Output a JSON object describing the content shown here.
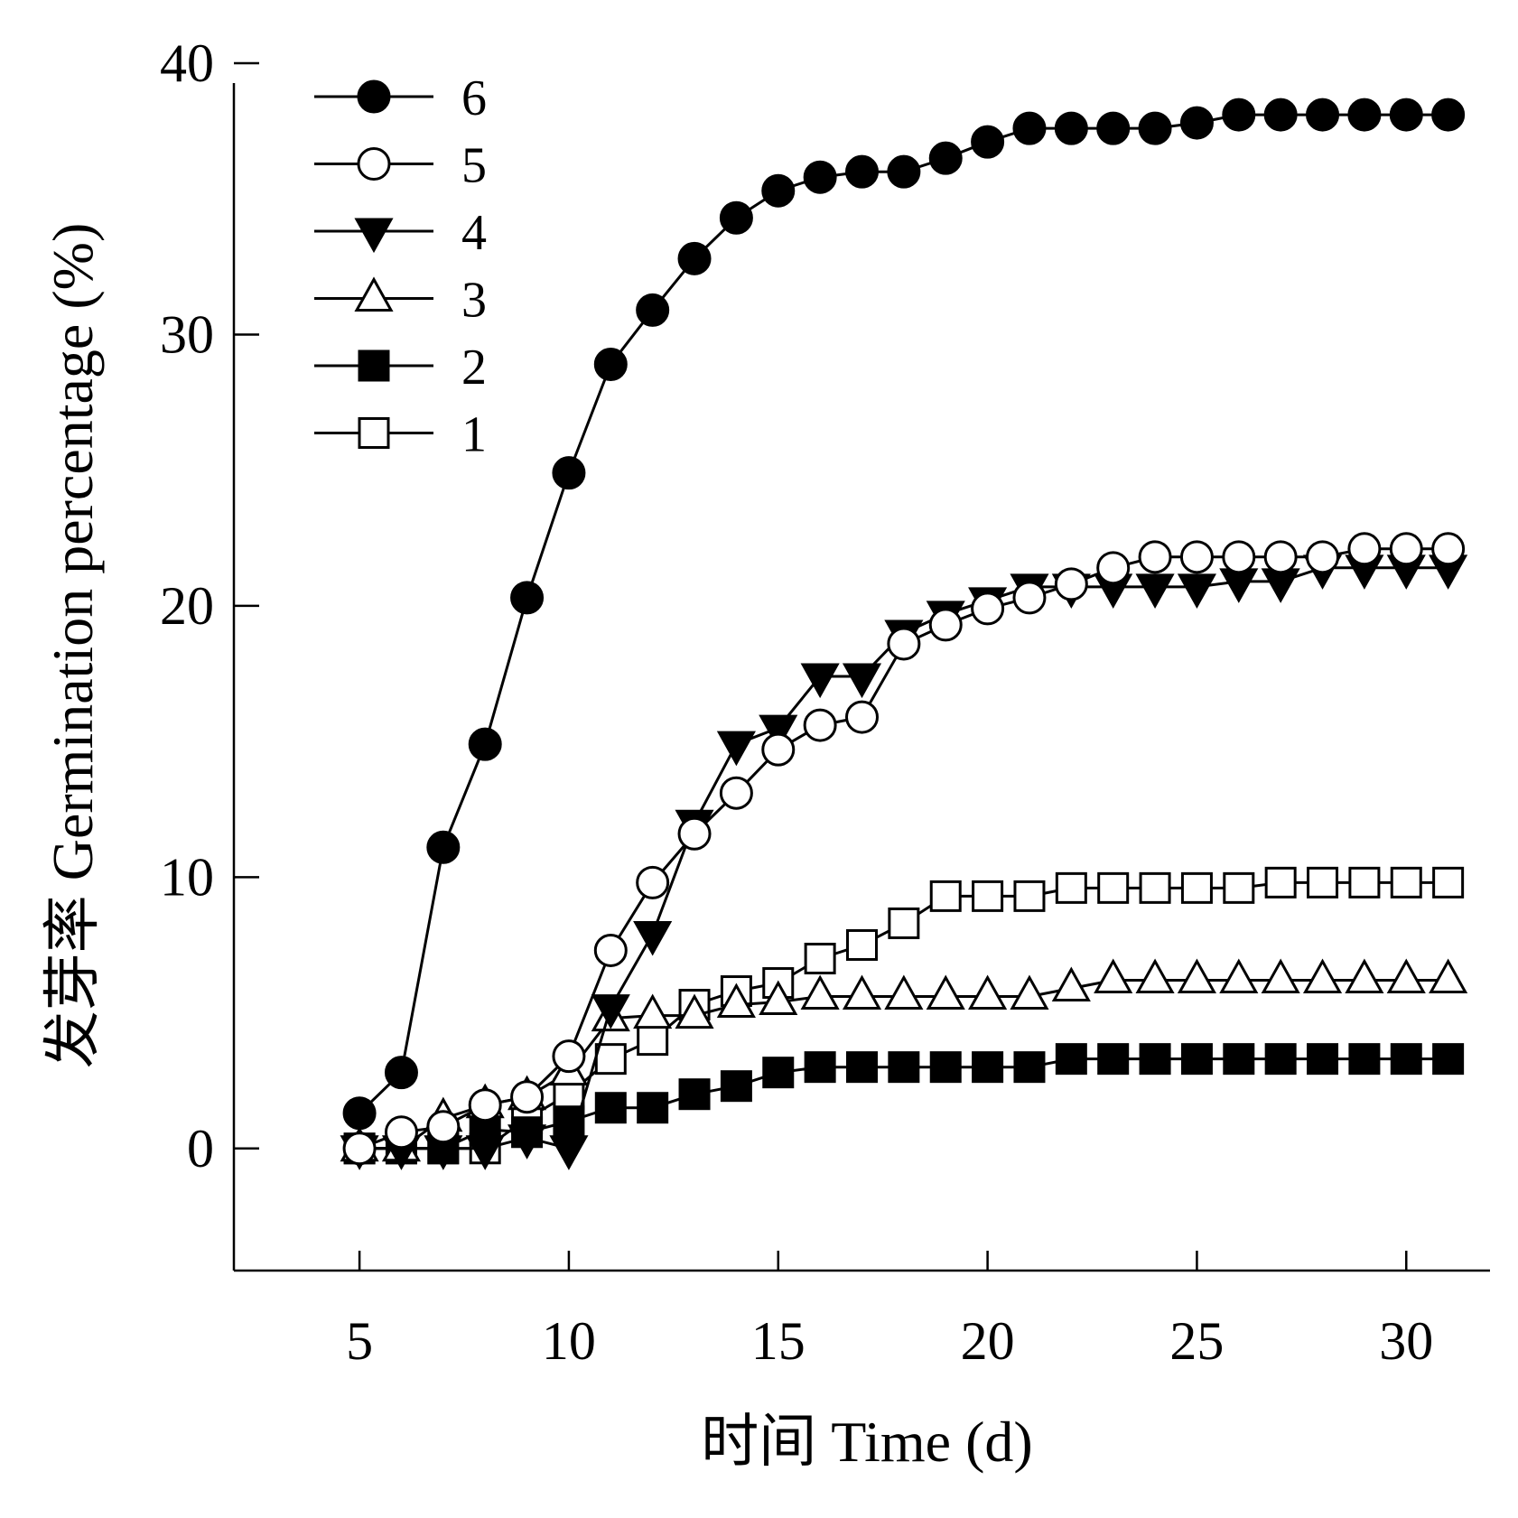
{
  "chart_data": {
    "type": "line",
    "xlabel": "时间  Time (d)",
    "ylabel": "发芽率 Germination percentage (%)",
    "xlim": [
      2,
      32
    ],
    "ylim": [
      -4.5,
      40
    ],
    "xticks": [
      5,
      10,
      15,
      20,
      25,
      30
    ],
    "yticks": [
      0,
      10,
      20,
      30,
      40
    ],
    "grid": false,
    "legend_position": "top-left",
    "x": [
      5,
      6,
      7,
      8,
      9,
      10,
      11,
      12,
      13,
      14,
      15,
      16,
      17,
      18,
      19,
      20,
      21,
      22,
      23,
      24,
      25,
      26,
      27,
      28,
      29,
      30,
      31
    ],
    "series": [
      {
        "name": "6",
        "marker": "filled-circle",
        "values": [
          1.3,
          2.8,
          11.1,
          14.9,
          20.3,
          24.9,
          28.9,
          30.9,
          32.8,
          34.3,
          35.3,
          35.8,
          36.0,
          36.0,
          36.5,
          37.1,
          37.6,
          37.6,
          37.6,
          37.6,
          37.8,
          38.1,
          38.1,
          38.1,
          38.1,
          38.1,
          38.1
        ]
      },
      {
        "name": "5",
        "marker": "open-circle",
        "values": [
          0.0,
          0.6,
          0.8,
          1.6,
          1.9,
          3.4,
          7.3,
          9.8,
          11.6,
          13.1,
          14.7,
          15.6,
          15.9,
          18.6,
          19.3,
          19.9,
          20.3,
          20.8,
          21.4,
          21.8,
          21.8,
          21.8,
          21.8,
          21.8,
          22.1,
          22.1,
          22.1
        ]
      },
      {
        "name": "4",
        "marker": "filled-triangle-down",
        "values": [
          0.0,
          0.0,
          0.0,
          0.0,
          0.4,
          0.0,
          5.2,
          7.9,
          12.0,
          14.9,
          15.5,
          17.4,
          17.4,
          19.0,
          19.7,
          20.2,
          20.7,
          20.7,
          20.7,
          20.7,
          20.7,
          20.9,
          20.9,
          21.4,
          21.4,
          21.4,
          21.4
        ]
      },
      {
        "name": "3",
        "marker": "open-triangle-up",
        "values": [
          0.0,
          0.0,
          1.1,
          1.6,
          1.9,
          2.8,
          4.8,
          4.9,
          4.9,
          5.3,
          5.4,
          5.6,
          5.6,
          5.6,
          5.6,
          5.6,
          5.6,
          5.9,
          6.2,
          6.2,
          6.2,
          6.2,
          6.2,
          6.2,
          6.2,
          6.2,
          6.2
        ]
      },
      {
        "name": "2",
        "marker": "filled-square",
        "values": [
          0.0,
          0.0,
          0.0,
          0.7,
          0.6,
          1.0,
          1.5,
          1.5,
          2.0,
          2.3,
          2.8,
          3.0,
          3.0,
          3.0,
          3.0,
          3.0,
          3.0,
          3.3,
          3.3,
          3.3,
          3.3,
          3.3,
          3.3,
          3.3,
          3.3,
          3.3,
          3.3
        ]
      },
      {
        "name": "1",
        "marker": "open-square",
        "values": [
          0.0,
          0.0,
          0.0,
          0.0,
          1.1,
          2.0,
          3.3,
          4.0,
          5.3,
          5.8,
          6.1,
          7.0,
          7.5,
          8.3,
          9.3,
          9.3,
          9.3,
          9.6,
          9.6,
          9.6,
          9.6,
          9.6,
          9.8,
          9.8,
          9.8,
          9.8,
          9.8
        ]
      }
    ]
  }
}
